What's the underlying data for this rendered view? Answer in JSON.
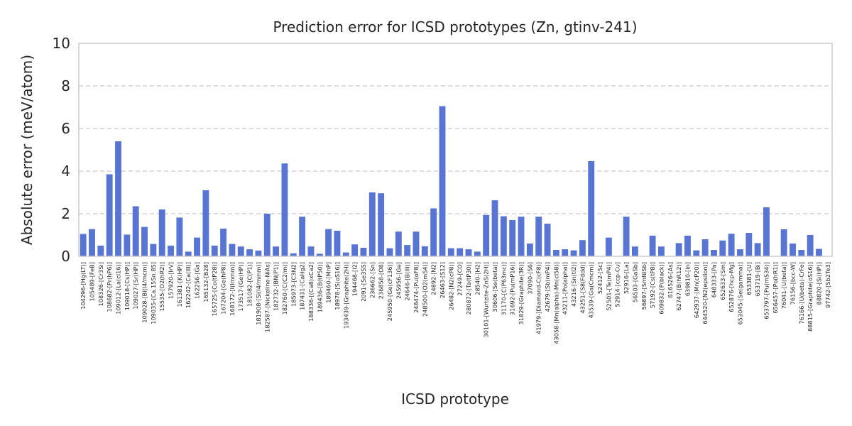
{
  "chart_data": {
    "type": "bar",
    "title": "Prediction error for ICSD prototypes (Zn, gtinv-241)",
    "xlabel": "ICSD prototype",
    "ylabel": "Absolute error (meV/atom)",
    "ylim": [
      0,
      10
    ],
    "yticks": [
      "0",
      "2",
      "4",
      "6",
      "8",
      "10"
    ],
    "grid": "y-dashed",
    "bar_color": "#5875d4",
    "categories": [
      "104296-[Hg(LT)]",
      "105489-[FeB]",
      "108326-[Cr3Si]",
      "108682-[Pr(hP6)]",
      "109012-[La(cI16)]",
      "109018-[Cs(HP)]",
      "109027-[Sr(HP)]",
      "109028-[Bi(I4/mcm)]",
      "109035-[Ca.15Sn.85]",
      "15535-[O2(hR2)]",
      "157920-[IrV]",
      "161381-[K(HP)]",
      "162242-[Ca(III)]",
      "162256-[Ga]",
      "165132-[B28]",
      "165725-[Co(tP28)]",
      "167204-[Ge(hP8)]",
      "168172-[I(Immm)]",
      "173517-[Ge(HP)]",
      "181082-[C(P1)]",
      "181908-[Si(I4/mmm)]",
      "182587-[Nickeline-NiAs]",
      "182732-[BN(P1)]",
      "182760-[C(C2/m)]",
      "185973-[C3N2]",
      "187431-[CaHg2]",
      "188336-[(Ca8)xCa2]",
      "189436-[B(tP50)]",
      "189460-[MnP]",
      "18978-[S(oS16)]",
      "193439-[Graphite(2H)]",
      "194468-[I2]",
      "2091-[Se3S5]",
      "236662-[Sn]",
      "236858-[O8]",
      "245950-[Ge(cF136)]",
      "245956-[Ge]",
      "24646-[B(III)]",
      "248474-[Pu(oF8)]",
      "248500-[O2(mS4)]",
      "24892-[N2]",
      "26463-[S12]",
      "26482-[N2(cP8)]",
      "27249-[CO]",
      "280872-[Ta(tP30)]",
      "28540-[H2]",
      "30101-[Wurtzite-ZnS(2H)]",
      "30606-[Se(beta)]",
      "31170-[C(P63mc)]",
      "31692-[Pu(mP16)]",
      "31829-[Graphite(3R)]",
      "37090-[S6]",
      "41979-[Diamond-C(cF8)]",
      "42679-[Sb(mP4)]",
      "43058-[Mn(alpha)-Mn(cI58)]",
      "43211-[Po(alpha)]",
      "43216-[Sn(tI2)]",
      "43251-[S8(Fddd)]",
      "43539-[Ga(Cmcm)]",
      "52412-[Sc]",
      "52501-[Te(mP4)]",
      "52914-[ccp-Cu]",
      "52916-[La]",
      "56503-[GaSb]",
      "56897-[SmNiSb]",
      "57192-[Cs(tP8)]",
      "609832-[P(black)]",
      "616526-[As]",
      "62747-[B(hR12)]",
      "639810-[In]",
      "642937-[Mn(cP20)]",
      "644520-[N2(epsilon)]",
      "648333-[Pa]",
      "652633-[Sm]",
      "652876-[hcp-Mg]",
      "653045-[Se(gamma)]",
      "653381-[U]",
      "653719-[Bi]",
      "653797-[Pu(mS34)]",
      "656457-[Po(hR1)]",
      "76041-[U(beta)]",
      "76156-[bcc-W]",
      "76166-[U(beta)-CrFe]",
      "88815-[Graphite(oS16)]",
      "88820-[Si(HP)]",
      "97742-[Sb2Te3]"
    ],
    "values": [
      1.05,
      1.28,
      0.5,
      3.85,
      5.4,
      1.02,
      2.35,
      1.38,
      0.58,
      2.2,
      0.5,
      1.82,
      0.22,
      0.88,
      3.1,
      0.5,
      1.3,
      0.58,
      0.46,
      0.33,
      0.27,
      2.0,
      0.46,
      4.36,
      0.14,
      1.86,
      0.46,
      0.12,
      1.28,
      1.2,
      0.18,
      0.56,
      0.4,
      3.0,
      2.96,
      0.38,
      1.16,
      0.53,
      1.16,
      0.47,
      2.25,
      7.05,
      0.38,
      0.38,
      0.33,
      0.22,
      1.94,
      2.63,
      1.88,
      1.7,
      1.86,
      0.6,
      1.86,
      1.53,
      0.3,
      0.33,
      0.28,
      0.76,
      4.47,
      0.0,
      0.88,
      0.0,
      1.86,
      0.46,
      0.0,
      0.97,
      0.46,
      0.0,
      0.62,
      0.97,
      0.28,
      0.8,
      0.3,
      0.74,
      1.06,
      0.33,
      1.1,
      0.62,
      2.3,
      0.0,
      1.27,
      0.6,
      0.3,
      1.0,
      0.35,
      0.0
    ]
  }
}
